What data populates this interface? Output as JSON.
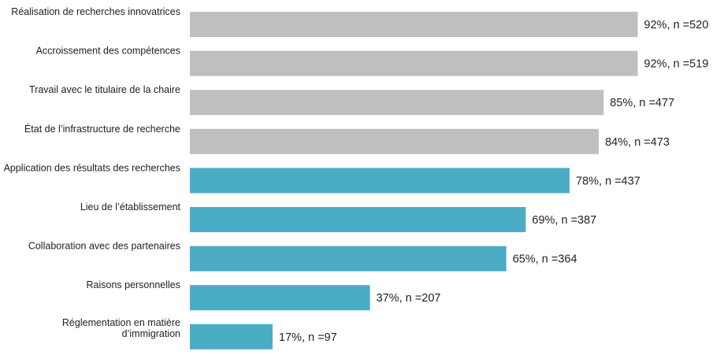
{
  "chart_data": {
    "type": "bar",
    "orientation": "horizontal",
    "title": "",
    "xlabel": "",
    "ylabel": "",
    "xlim": [
      0,
      100
    ],
    "grid": false,
    "legend": "none",
    "categories": [
      [
        "Réalisation de recherches innovatrices"
      ],
      [
        "Accroissement des compétences"
      ],
      [
        "Travail avec le titulaire de la chaire"
      ],
      [
        "État de l’infrastructure de recherche"
      ],
      [
        "Application des résultats des recherches"
      ],
      [
        "Lieu de l’établissement"
      ],
      [
        "Collaboration avec des partenaires"
      ],
      [
        "Raisons personnelles"
      ],
      [
        "Réglementation en matière",
        "d’immigration"
      ]
    ],
    "values": [
      92,
      92,
      85,
      84,
      78,
      69,
      65,
      37,
      17
    ],
    "n": [
      520,
      519,
      477,
      473,
      437,
      387,
      364,
      207,
      97
    ],
    "data_labels": [
      "92%, n =520",
      "92%, n =519",
      "85%, n =477",
      "84%, n =473",
      "78%, n =437",
      "69%, n =387",
      "65%, n =364",
      "37%, n =207",
      "17%, n =97"
    ],
    "bar_colors": [
      "#bfbfbf",
      "#bfbfbf",
      "#bfbfbf",
      "#bfbfbf",
      "#4bacc6",
      "#4bacc6",
      "#4bacc6",
      "#4bacc6",
      "#4bacc6"
    ]
  }
}
